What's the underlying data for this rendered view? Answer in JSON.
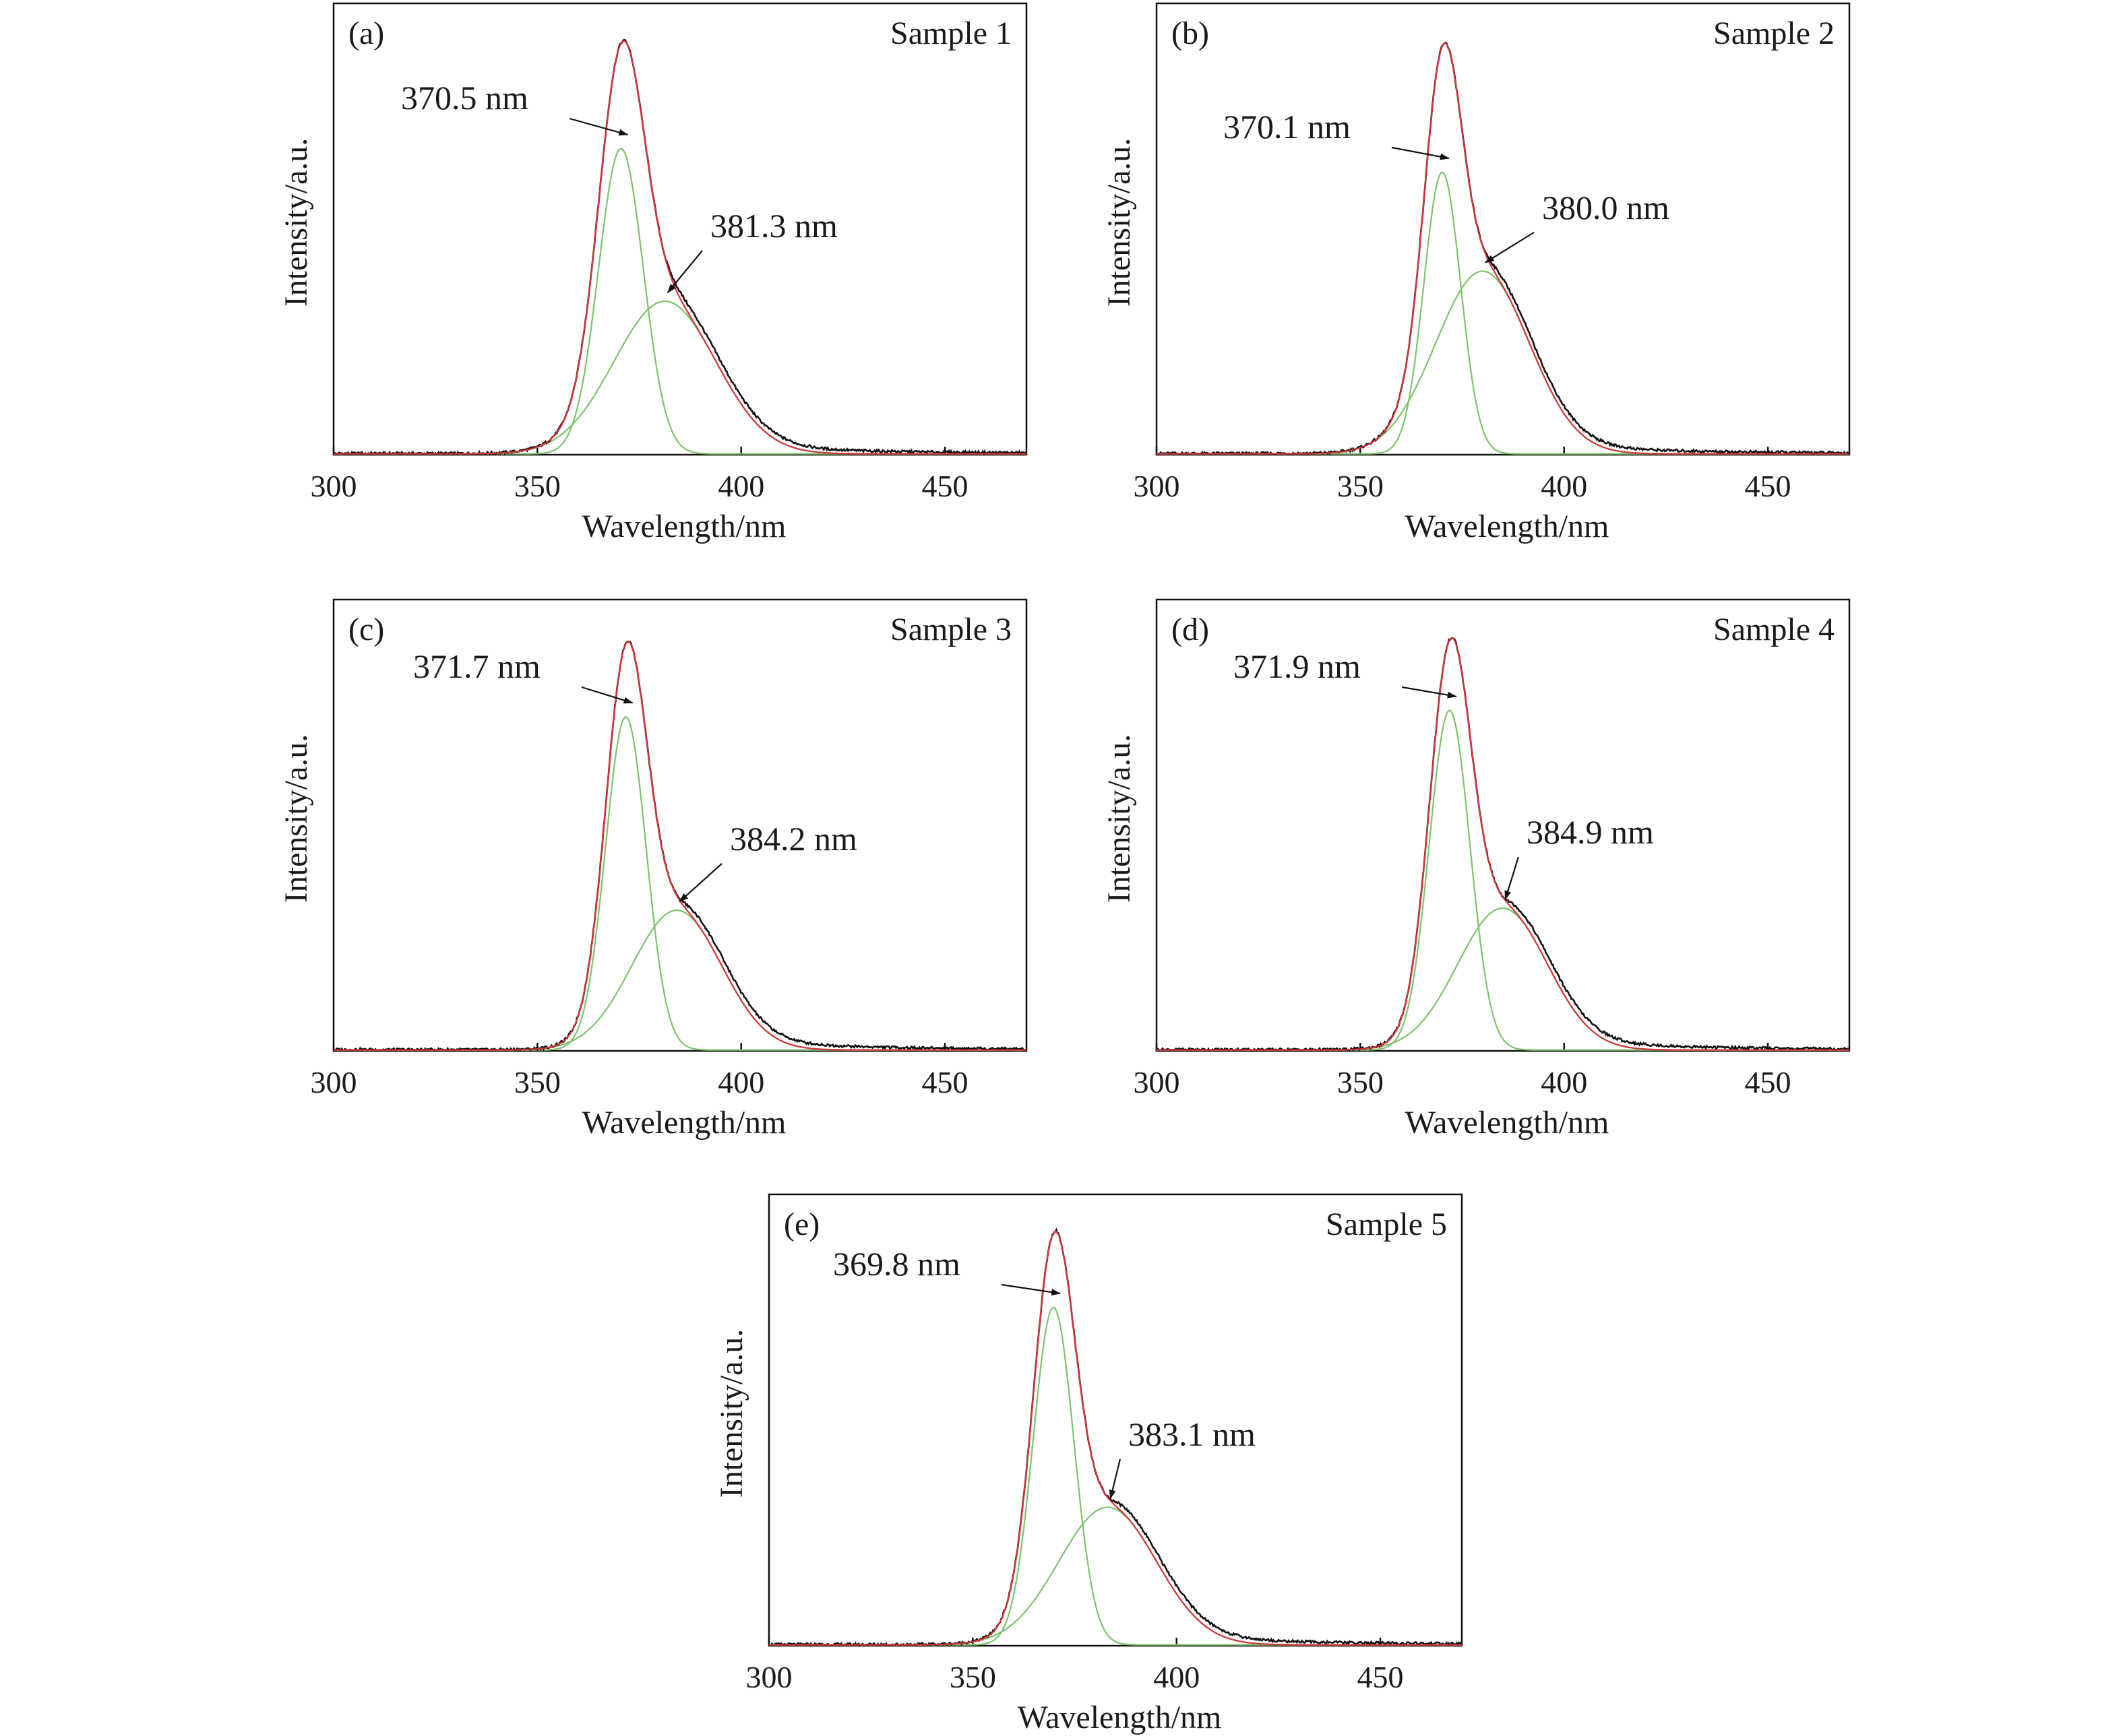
{
  "chart_data": [
    {
      "type": "line",
      "panel_label": "(a)",
      "sample_label": "Sample 1",
      "xlabel": "Wavelength/nm",
      "ylabel": "Intensity/a.u.",
      "xlim": [
        300,
        470
      ],
      "xticks": [
        300,
        350,
        400,
        450
      ],
      "ylim": [
        0,
        1.05
      ],
      "peaks": [
        {
          "center": 370.5,
          "amplitude": 0.71,
          "sigma": 5.5,
          "label": "370.5 nm",
          "color": "#7dc36b"
        },
        {
          "center": 381.3,
          "amplitude": 0.355,
          "sigma": 12.5,
          "label": "381.3 nm",
          "color": "#7dc36b"
        }
      ],
      "series_colors": {
        "measured": "#111111",
        "fit": "#d6333a",
        "component": "#7dc36b"
      }
    },
    {
      "type": "line",
      "panel_label": "(b)",
      "sample_label": "Sample 2",
      "xlabel": "Wavelength/nm",
      "ylabel": "Intensity/a.u.",
      "xlim": [
        300,
        470
      ],
      "xticks": [
        300,
        350,
        400,
        450
      ],
      "ylim": [
        0,
        1.05
      ],
      "peaks": [
        {
          "center": 370.1,
          "amplitude": 0.655,
          "sigma": 4.5,
          "label": "370.1 nm",
          "color": "#7dc36b"
        },
        {
          "center": 380.0,
          "amplitude": 0.425,
          "sigma": 11.5,
          "label": "380.0 nm",
          "color": "#7dc36b"
        }
      ],
      "series_colors": {
        "measured": "#111111",
        "fit": "#d6333a",
        "component": "#7dc36b"
      }
    },
    {
      "type": "line",
      "panel_label": "(c)",
      "sample_label": "Sample 3",
      "xlabel": "Wavelength/nm",
      "ylabel": "Intensity/a.u.",
      "xlim": [
        300,
        470
      ],
      "xticks": [
        300,
        350,
        400,
        450
      ],
      "ylim": [
        0,
        1.05
      ],
      "peaks": [
        {
          "center": 371.7,
          "amplitude": 0.775,
          "sigma": 5.0,
          "label": "371.7 nm",
          "color": "#7dc36b"
        },
        {
          "center": 384.2,
          "amplitude": 0.325,
          "sigma": 11.0,
          "label": "384.2 nm",
          "color": "#7dc36b"
        }
      ],
      "series_colors": {
        "measured": "#111111",
        "fit": "#d6333a",
        "component": "#7dc36b"
      }
    },
    {
      "type": "line",
      "panel_label": "(d)",
      "sample_label": "Sample 4",
      "xlabel": "Wavelength/nm",
      "ylabel": "Intensity/a.u.",
      "xlim": [
        300,
        470
      ],
      "xticks": [
        300,
        350,
        400,
        450
      ],
      "ylim": [
        0,
        1.05
      ],
      "peaks": [
        {
          "center": 371.9,
          "amplitude": 0.79,
          "sigma": 5.0,
          "label": "371.9 nm",
          "color": "#7dc36b"
        },
        {
          "center": 384.9,
          "amplitude": 0.33,
          "sigma": 11.0,
          "label": "384.9 nm",
          "color": "#7dc36b"
        }
      ],
      "series_colors": {
        "measured": "#111111",
        "fit": "#d6333a",
        "component": "#7dc36b"
      }
    },
    {
      "type": "line",
      "panel_label": "(e)",
      "sample_label": "Sample 5",
      "xlabel": "Wavelength/nm",
      "ylabel": "Intensity/a.u.",
      "xlim": [
        300,
        470
      ],
      "xticks": [
        300,
        350,
        400,
        450
      ],
      "ylim": [
        0,
        1.05
      ],
      "peaks": [
        {
          "center": 369.8,
          "amplitude": 0.785,
          "sigma": 5.0,
          "label": "369.8 nm",
          "color": "#7dc36b"
        },
        {
          "center": 383.1,
          "amplitude": 0.32,
          "sigma": 12.0,
          "label": "383.1 nm",
          "color": "#7dc36b"
        }
      ],
      "series_colors": {
        "measured": "#111111",
        "fit": "#d6333a",
        "component": "#7dc36b"
      }
    }
  ]
}
